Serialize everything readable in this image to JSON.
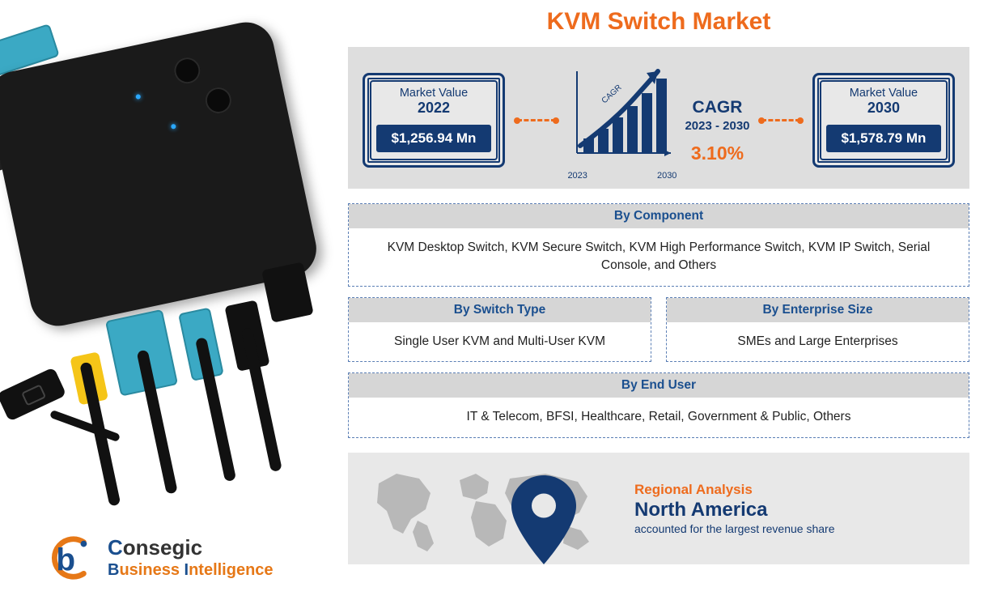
{
  "title": "KVM Switch Market",
  "colors": {
    "accent_orange": "#ee6b1d",
    "accent_navy": "#143a72",
    "panel_gray": "#dedede",
    "seg_head_gray": "#d6d6d6",
    "dashed_border": "#5b7fb5",
    "light_gray": "#e8e8e8",
    "map_fill": "#b8b8b8"
  },
  "metrics": {
    "card_2022": {
      "label": "Market Value",
      "year": "2022",
      "amount": "$1,256.94 Mn"
    },
    "cagr": {
      "badge": "CAGR",
      "label": "CAGR",
      "range": "2023 - 2030",
      "value": "3.10%",
      "chart": {
        "bars": [
          18,
          30,
          44,
          58,
          74,
          92
        ],
        "bar_color": "#143a72",
        "arrow_color": "#143a72",
        "x_start_label": "2023",
        "x_end_label": "2030"
      }
    },
    "card_2030": {
      "label": "Market Value",
      "year": "2030",
      "amount": "$1,578.79 Mn"
    }
  },
  "segments": {
    "component": {
      "title": "By Component",
      "body": "KVM Desktop Switch, KVM Secure Switch, KVM High Performance Switch, KVM IP Switch, Serial Console, and Others"
    },
    "switch_type": {
      "title": "By Switch Type",
      "body": "Single User KVM and Multi-User KVM"
    },
    "enterprise_size": {
      "title": "By Enterprise Size",
      "body": "SMEs and Large Enterprises"
    },
    "end_user": {
      "title": "By End User",
      "body": "IT & Telecom, BFSI, Healthcare, Retail, Government & Public, Others"
    }
  },
  "regional": {
    "heading": "Regional Analysis",
    "region": "North America",
    "note": "accounted for the largest revenue share"
  },
  "logo": {
    "line1_plain": "onsegic",
    "line1_bold": "C",
    "line2_b1": "B",
    "line2_plain1": "usiness ",
    "line2_b2": "I",
    "line2_plain2": "ntelligence"
  }
}
